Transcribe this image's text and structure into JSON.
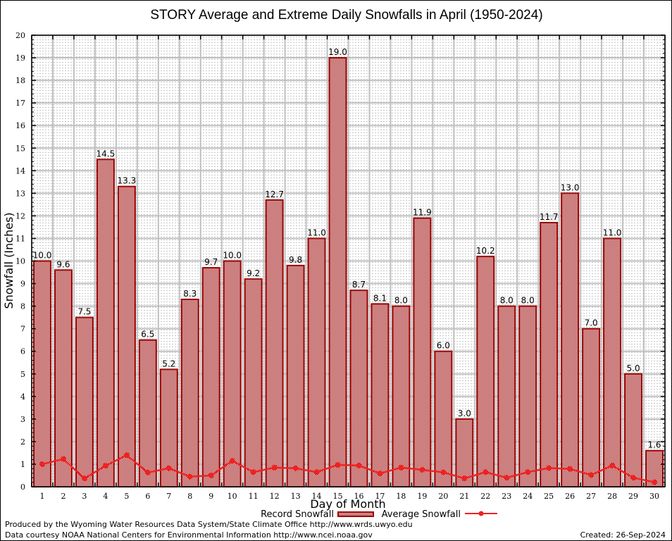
{
  "chart_data": {
    "type": "bar",
    "title": "STORY Average and Extreme Daily Snowfalls in April (1950-2024)",
    "xlabel": "Day of Month",
    "ylabel": "Snowfall (Inches)",
    "ylim": [
      0,
      20
    ],
    "yticks": [
      0,
      1,
      2,
      3,
      4,
      5,
      6,
      7,
      8,
      9,
      10,
      11,
      12,
      13,
      14,
      15,
      16,
      17,
      18,
      19,
      20
    ],
    "grid": true,
    "categories": [
      "1",
      "2",
      "3",
      "4",
      "5",
      "6",
      "7",
      "8",
      "9",
      "10",
      "11",
      "12",
      "13",
      "14",
      "15",
      "16",
      "17",
      "18",
      "19",
      "20",
      "21",
      "22",
      "23",
      "24",
      "25",
      "26",
      "27",
      "28",
      "29",
      "30"
    ],
    "series": [
      {
        "name": "Record Snowfall",
        "type": "bar",
        "color": "#990000",
        "values": [
          10.0,
          9.6,
          7.5,
          14.5,
          13.3,
          6.5,
          5.2,
          8.3,
          9.7,
          10.0,
          9.2,
          12.7,
          9.8,
          11.0,
          19.0,
          8.7,
          8.1,
          8.0,
          11.9,
          6.0,
          3.0,
          10.2,
          8.0,
          8.0,
          11.7,
          13.0,
          7.0,
          11.0,
          5.0,
          1.6
        ],
        "labels": [
          "10.0",
          "9.6",
          "7.5",
          "14.5",
          "13.3",
          "6.5",
          "5.2",
          "8.3",
          "9.7",
          "10.0",
          "9.2",
          "12.7",
          "9.8",
          "11.0",
          "19.0",
          "8.7",
          "8.1",
          "8.0",
          "11.9",
          "6.0",
          "3.0",
          "10.2",
          "8.0",
          "8.0",
          "11.7",
          "13.0",
          "7.0",
          "11.0",
          "5.0",
          "1.6"
        ]
      },
      {
        "name": "Average Snowfall",
        "type": "line",
        "color": "#ee2222",
        "values": [
          1.0,
          1.23,
          0.37,
          0.93,
          1.4,
          0.63,
          0.82,
          0.45,
          0.5,
          1.15,
          0.65,
          0.85,
          0.82,
          0.65,
          0.97,
          0.94,
          0.59,
          0.85,
          0.75,
          0.64,
          0.37,
          0.65,
          0.4,
          0.65,
          0.83,
          0.79,
          0.52,
          0.94,
          0.4,
          0.2
        ]
      }
    ],
    "legend": "bottom-center"
  },
  "footer": {
    "line1": "Produced by the Wyoming Water Resources Data System/State Climate Office http://www.wrds.uwyo.edu",
    "line2": "Data courtesy NOAA National Centers for Environmental Information http://www.ncei.noaa.gov",
    "created": "Created: 26-Sep-2024"
  }
}
